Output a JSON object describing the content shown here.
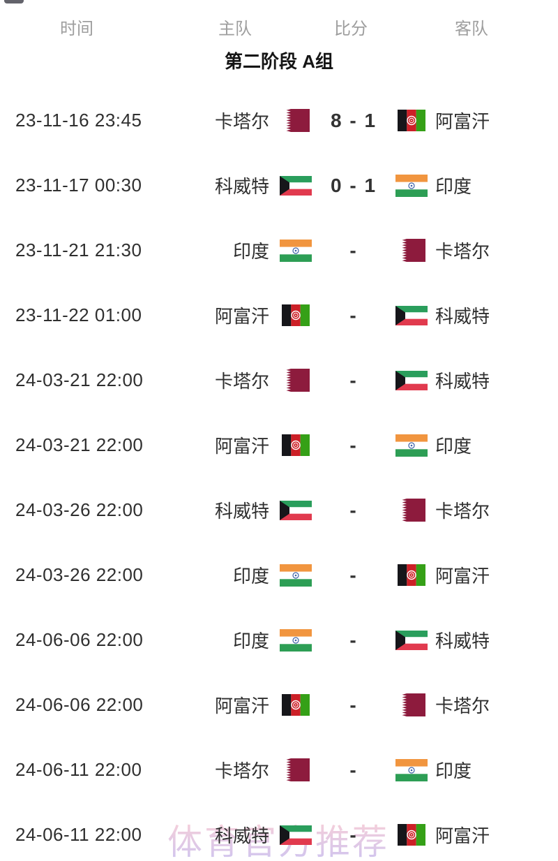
{
  "columns": {
    "time": "时间",
    "home": "主队",
    "score": "比分",
    "away": "客队"
  },
  "group_title": "第二阶段 A组",
  "watermark": "体育官方推荐",
  "colors": {
    "header_text": "#9e9e9e",
    "primary_text": "#2f2f2f",
    "score_text": "#333333",
    "watermark_pink": "#f2b6c6",
    "watermark_purple": "#b9a6e6",
    "qatar_maroon": "#8d1b3d",
    "kuwait_green": "#2a9e5c",
    "kuwait_red": "#e13a4e",
    "india_saffron": "#f1953f",
    "india_green": "#2d9e55",
    "india_navy": "#3f62a7",
    "afghan_black": "#16161a",
    "afghan_red": "#cc2027",
    "afghan_green": "#35a017"
  },
  "matches": [
    {
      "time": "23-11-16 23:45",
      "home": "卡塔尔",
      "home_flag": "qatar",
      "score": "8 - 1",
      "away": "阿富汗",
      "away_flag": "afghanistan"
    },
    {
      "time": "23-11-17 00:30",
      "home": "科威特",
      "home_flag": "kuwait",
      "score": "0 - 1",
      "away": "印度",
      "away_flag": "india"
    },
    {
      "time": "23-11-21 21:30",
      "home": "印度",
      "home_flag": "india",
      "score": "-",
      "away": "卡塔尔",
      "away_flag": "qatar"
    },
    {
      "time": "23-11-22 01:00",
      "home": "阿富汗",
      "home_flag": "afghanistan",
      "score": "-",
      "away": "科威特",
      "away_flag": "kuwait"
    },
    {
      "time": "24-03-21 22:00",
      "home": "卡塔尔",
      "home_flag": "qatar",
      "score": "-",
      "away": "科威特",
      "away_flag": "kuwait"
    },
    {
      "time": "24-03-21 22:00",
      "home": "阿富汗",
      "home_flag": "afghanistan",
      "score": "-",
      "away": "印度",
      "away_flag": "india"
    },
    {
      "time": "24-03-26 22:00",
      "home": "科威特",
      "home_flag": "kuwait",
      "score": "-",
      "away": "卡塔尔",
      "away_flag": "qatar"
    },
    {
      "time": "24-03-26 22:00",
      "home": "印度",
      "home_flag": "india",
      "score": "-",
      "away": "阿富汗",
      "away_flag": "afghanistan"
    },
    {
      "time": "24-06-06 22:00",
      "home": "印度",
      "home_flag": "india",
      "score": "-",
      "away": "科威特",
      "away_flag": "kuwait"
    },
    {
      "time": "24-06-06 22:00",
      "home": "阿富汗",
      "home_flag": "afghanistan",
      "score": "-",
      "away": "卡塔尔",
      "away_flag": "qatar"
    },
    {
      "time": "24-06-11 22:00",
      "home": "卡塔尔",
      "home_flag": "qatar",
      "score": "-",
      "away": "印度",
      "away_flag": "india"
    },
    {
      "time": "24-06-11 22:00",
      "home": "科威特",
      "home_flag": "kuwait",
      "score": "-",
      "away": "阿富汗",
      "away_flag": "afghanistan"
    }
  ]
}
